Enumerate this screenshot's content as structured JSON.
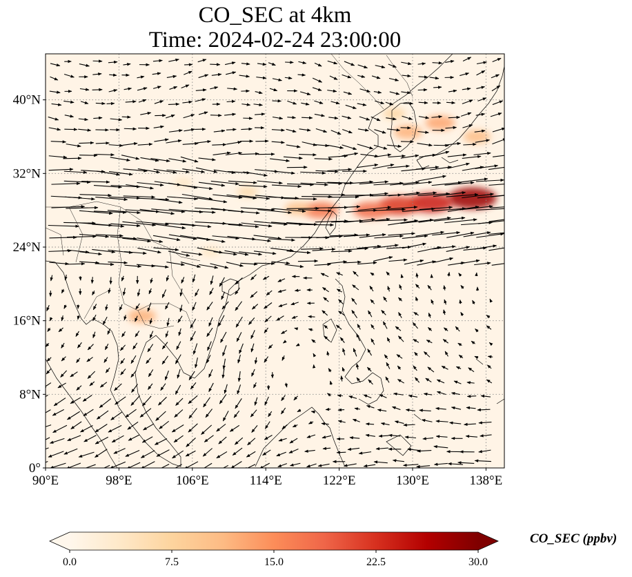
{
  "title": {
    "line1": "CO_SEC at 4km",
    "line2": "Time: 2024-02-24 23:00:00"
  },
  "map": {
    "projection": "PlateCarree",
    "lon_range": [
      90,
      140
    ],
    "lat_range": [
      0,
      45
    ],
    "lon_ticks": [
      {
        "value": 90,
        "label": "90°E"
      },
      {
        "value": 98,
        "label": "98°E"
      },
      {
        "value": 106,
        "label": "106°E"
      },
      {
        "value": 114,
        "label": "114°E"
      },
      {
        "value": 122,
        "label": "122°E"
      },
      {
        "value": 130,
        "label": "130°E"
      },
      {
        "value": 138,
        "label": "138°E"
      }
    ],
    "lat_ticks": [
      {
        "value": 0,
        "label": "0°"
      },
      {
        "value": 8,
        "label": "8°N"
      },
      {
        "value": 16,
        "label": "16°N"
      },
      {
        "value": 24,
        "label": "24°N"
      },
      {
        "value": 32,
        "label": "32°N"
      },
      {
        "value": 40,
        "label": "40°N"
      }
    ],
    "gridlines": "dotted",
    "background_color": "#fff4e6",
    "wind_vectors": "black arrows",
    "co_sec_hotspots": [
      {
        "lon": 136.5,
        "lat": 29.3,
        "value": 28
      },
      {
        "lon": 132.0,
        "lat": 28.8,
        "value": 24
      },
      {
        "lon": 128.5,
        "lat": 28.5,
        "value": 22
      },
      {
        "lon": 125.5,
        "lat": 28.0,
        "value": 18
      },
      {
        "lon": 120.0,
        "lat": 28.0,
        "value": 17
      },
      {
        "lon": 117.5,
        "lat": 28.2,
        "value": 10
      },
      {
        "lon": 129.5,
        "lat": 36.5,
        "value": 12
      },
      {
        "lon": 133.0,
        "lat": 37.5,
        "value": 13
      },
      {
        "lon": 137.0,
        "lat": 36.0,
        "value": 11
      },
      {
        "lon": 128.0,
        "lat": 38.5,
        "value": 7
      },
      {
        "lon": 100.5,
        "lat": 16.5,
        "value": 12
      },
      {
        "lon": 112.0,
        "lat": 30.0,
        "value": 6
      },
      {
        "lon": 105.0,
        "lat": 31.0,
        "value": 4
      },
      {
        "lon": 108.0,
        "lat": 23.5,
        "value": 4
      }
    ]
  },
  "colorbar": {
    "label": "CO_SEC (ppbv)",
    "vmin": 0.0,
    "vmax": 30.0,
    "ticks": [
      "0.0",
      "7.5",
      "15.0",
      "22.5",
      "30.0"
    ],
    "extend": "both",
    "colormap": "OrRd",
    "colors": [
      "#fff7ec",
      "#fee8c8",
      "#fdd49e",
      "#fdbb84",
      "#fc8d59",
      "#ef6548",
      "#d7301f",
      "#b30000",
      "#7f0000"
    ]
  }
}
